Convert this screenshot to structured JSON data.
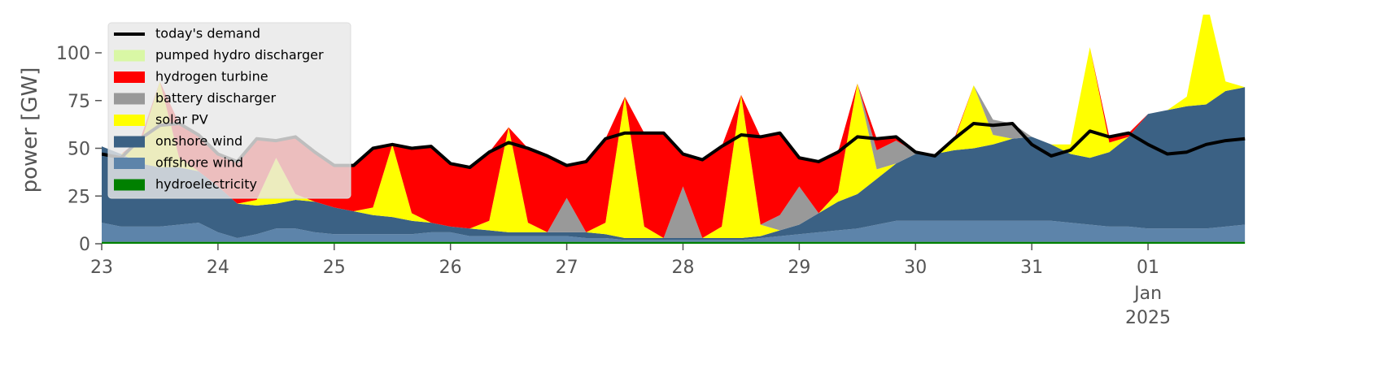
{
  "chart_data": {
    "type": "stacked_area",
    "ylabel": "power [GW]",
    "x": [
      0,
      4,
      8,
      12,
      16,
      20,
      24,
      28,
      32,
      36,
      40,
      44,
      48,
      52,
      56,
      60,
      64,
      68,
      72,
      76,
      80,
      84,
      88,
      92,
      96,
      100,
      104,
      108,
      112,
      116,
      120,
      124,
      128,
      132,
      136,
      140,
      144,
      148,
      152,
      156,
      160,
      164,
      168,
      172,
      176,
      180,
      184,
      188,
      192,
      196,
      200,
      204,
      208,
      212,
      216,
      220,
      224,
      228,
      232,
      236
    ],
    "xlim": [
      0,
      239
    ],
    "xticks": [
      {
        "value": 0,
        "label": "23"
      },
      {
        "value": 24,
        "label": "24"
      },
      {
        "value": 48,
        "label": "25"
      },
      {
        "value": 72,
        "label": "26"
      },
      {
        "value": 96,
        "label": "27"
      },
      {
        "value": 120,
        "label": "28"
      },
      {
        "value": 144,
        "label": "29"
      },
      {
        "value": 168,
        "label": "30"
      },
      {
        "value": 192,
        "label": "31"
      },
      {
        "value": 216,
        "label": "01"
      }
    ],
    "x_month": "Jan",
    "x_year": "2025",
    "ylim": [
      0,
      120
    ],
    "yticks": [
      0,
      25,
      50,
      75,
      100
    ],
    "grid": false,
    "legend": "upper left",
    "series": [
      {
        "name": "hydroelectricity",
        "color": "#008000",
        "values": [
          1,
          1,
          1,
          1,
          1,
          1,
          1,
          1,
          1,
          1,
          1,
          1,
          1,
          1,
          1,
          1,
          1,
          1,
          1,
          1,
          1,
          1,
          1,
          1,
          1,
          1,
          1,
          1,
          1,
          1,
          1,
          1,
          1,
          1,
          1,
          1,
          1,
          1,
          1,
          1,
          1,
          1,
          1,
          1,
          1,
          1,
          1,
          1,
          1,
          1,
          1,
          1,
          1,
          1,
          1,
          1,
          1,
          1,
          1,
          1
        ]
      },
      {
        "name": "offshore wind",
        "color": "#5d84aa",
        "values": [
          10,
          8,
          8,
          8,
          9,
          10,
          5,
          2,
          4,
          7,
          7,
          5,
          4,
          4,
          4,
          4,
          4,
          5,
          5,
          3,
          3,
          3,
          3,
          3,
          3,
          2,
          2,
          1,
          1,
          1,
          1,
          1,
          1,
          1,
          2,
          3,
          4,
          5,
          6,
          7,
          9,
          11,
          11,
          11,
          11,
          11,
          11,
          11,
          11,
          11,
          10,
          9,
          8,
          8,
          7,
          7,
          7,
          7,
          8,
          9
        ]
      },
      {
        "name": "onshore wind",
        "color": "#3b6184",
        "values": [
          40,
          38,
          33,
          31,
          30,
          27,
          24,
          18,
          15,
          13,
          15,
          16,
          14,
          12,
          10,
          9,
          7,
          5,
          3,
          4,
          3,
          2,
          2,
          2,
          2,
          3,
          2,
          1,
          1,
          1,
          1,
          1,
          1,
          1,
          1,
          3,
          5,
          10,
          15,
          18,
          24,
          30,
          35,
          35,
          37,
          38,
          40,
          43,
          44,
          40,
          36,
          35,
          39,
          47,
          60,
          62,
          64,
          65,
          71,
          72
        ]
      },
      {
        "name": "solar PV",
        "color": "#ffff00",
        "values": [
          0,
          0,
          10,
          45,
          5,
          0,
          0,
          0,
          3,
          24,
          3,
          0,
          0,
          0,
          4,
          38,
          4,
          0,
          0,
          0,
          5,
          55,
          5,
          0,
          0,
          0,
          6,
          74,
          6,
          0,
          0,
          0,
          6,
          75,
          6,
          0,
          0,
          0,
          5,
          58,
          5,
          0,
          0,
          0,
          5,
          33,
          5,
          0,
          0,
          0,
          5,
          58,
          5,
          0,
          0,
          0,
          5,
          55,
          5,
          0
        ]
      },
      {
        "name": "battery discharger",
        "color": "#999999",
        "values": [
          0,
          0,
          0,
          0,
          0,
          0,
          0,
          0,
          0,
          0,
          0,
          0,
          0,
          0,
          0,
          0,
          0,
          0,
          0,
          0,
          0,
          0,
          0,
          0,
          18,
          0,
          0,
          0,
          0,
          0,
          27,
          0,
          0,
          0,
          0,
          8,
          20,
          0,
          0,
          0,
          10,
          12,
          1,
          0,
          0,
          0,
          8,
          8,
          0,
          0,
          0,
          0,
          0,
          0,
          0,
          0,
          0,
          0,
          0,
          0
        ]
      },
      {
        "name": "hydrogen turbine",
        "color": "#ff0000",
        "values": [
          0,
          0,
          3,
          0,
          18,
          19,
          17,
          22,
          32,
          9,
          30,
          26,
          22,
          24,
          31,
          0,
          34,
          40,
          33,
          32,
          36,
          0,
          39,
          40,
          17,
          37,
          44,
          0,
          49,
          55,
          17,
          41,
          42,
          0,
          46,
          43,
          15,
          27,
          21,
          0,
          6,
          2,
          0,
          0,
          1,
          0,
          0,
          0,
          0,
          0,
          0,
          0,
          3,
          2,
          0,
          0,
          0,
          0,
          0,
          0
        ]
      },
      {
        "name": "pumped hydro discharger",
        "color": "#d9f7a5",
        "values": [
          0,
          0,
          0,
          0,
          0,
          0,
          0,
          0,
          0,
          0,
          0,
          0,
          0,
          0,
          0,
          0,
          0,
          0,
          0,
          0,
          0,
          0,
          0,
          0,
          0,
          0,
          0,
          0,
          0,
          0,
          0,
          0,
          0,
          0,
          0,
          0,
          0,
          0,
          0,
          0,
          0,
          0,
          0,
          0,
          0,
          0,
          0,
          0,
          0,
          0,
          0,
          0,
          0,
          0,
          0,
          0,
          0,
          0,
          0,
          0
        ]
      }
    ],
    "demand": {
      "name": "today's demand",
      "color": "#000000",
      "values": [
        47,
        45,
        55,
        62,
        63,
        57,
        47,
        43,
        55,
        54,
        56,
        48,
        41,
        41,
        50,
        52,
        50,
        51,
        42,
        40,
        48,
        53,
        50,
        46,
        41,
        43,
        55,
        58,
        58,
        58,
        47,
        44,
        51,
        57,
        56,
        58,
        45,
        43,
        48,
        56,
        55,
        56,
        48,
        46,
        55,
        63,
        62,
        63,
        52,
        46,
        49,
        59,
        56,
        58,
        52,
        47,
        48,
        52,
        54,
        55
      ]
    }
  }
}
